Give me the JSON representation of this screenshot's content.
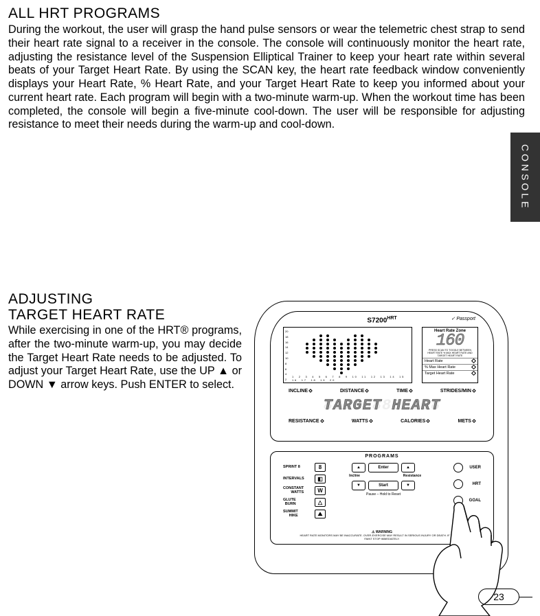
{
  "title1": "ALL HRT PROGRAMS",
  "para1": "During the workout, the user will grasp the hand pulse sensors or wear the telemetric chest strap to send their heart rate signal to a receiver in the console. The console will continuously monitor the heart rate, adjusting the resistance level of the Suspension Elliptical Trainer to keep your heart rate within several beats of your Target Heart Rate. By using the SCAN key, the heart rate feedback window conveniently displays your Heart Rate, % Heart Rate, and your Target Heart Rate to keep you informed about your current heart rate. Each program will begin with a two-minute warm-up. When the workout time has been completed, the console will begin a five-minute cool-down. The user will be responsible for adjusting resistance to meet their needs during the warm-up and cool-down.",
  "side_tab": "CONSOLE",
  "title2a": "ADJUSTING",
  "title2b": "TARGET HEART RATE",
  "para2": "While exercising in one of the HRT® programs, after the two-minute warm-up, you may decide the Target Heart Rate needs to be adjusted. To adjust your Target Heart Rate, use the UP ▲ or DOWN ▼ arrow keys. Push ENTER to select.",
  "page_number": "23",
  "console": {
    "model": "S7200",
    "model_suffix": "HRT",
    "passport": "Passport",
    "y_ticks": [
      "20",
      "18",
      "16",
      "14",
      "12",
      "10",
      "8",
      "6",
      "4",
      "2"
    ],
    "x_ticks": "1  2  3  4  5  6  7  8  9  10 11 12 13 14 15 16 17 18 19 20",
    "hr_zone_title": "Heart Rate Zone",
    "hr_value": "160",
    "hr_lines": [
      "Heart Rate",
      "% Max Heart Rate",
      "Target Heart Rate"
    ],
    "mid_labels": [
      "INCLINE",
      "DISTANCE",
      "TIME",
      "STRIDES/MIN"
    ],
    "lcd_text": "TARGET HEART",
    "bot_labels": [
      "RESISTANCE",
      "WATTS",
      "CALORIES",
      "METS"
    ],
    "programs_label": "PROGRAMS",
    "left_keys": [
      {
        "label": "SPRINT 8",
        "glyph": "8"
      },
      {
        "label": "INTERVALS",
        "glyph": "◧"
      },
      {
        "label": "CONSTANT\nWATTS",
        "glyph": "W"
      },
      {
        "label": "GLUTE\nBURN",
        "glyph": "△"
      },
      {
        "label": "SUMMIT\nHIKE",
        "glyph": "⛰"
      }
    ],
    "right_keys": [
      "USER",
      "HRT",
      "GOAL"
    ],
    "enter": "Enter",
    "start": "Start",
    "incline": "Incline",
    "resistance": "Resistance",
    "pause": "Pause – Hold to Reset",
    "warning_title": "⚠ WARNING",
    "warning_text": "HEART RATE MONITORS MAY BE INACCURATE. OVER-EXERCISE MAY RESULT IN SERIOUS INJURY OR DEATH. IF YOU FEEL FAINT STOP IMMEDIATELY.",
    "heart_matrix": [
      "0001100011000",
      "0011110111100",
      "0111111111110",
      "0111111111110",
      "0111111111110",
      "0011111111100",
      "0001111111000",
      "0000111110000",
      "0000011100000",
      "0000001000000"
    ],
    "dot_color": "#000000",
    "dot_size": 4,
    "dot_gap": 2
  }
}
